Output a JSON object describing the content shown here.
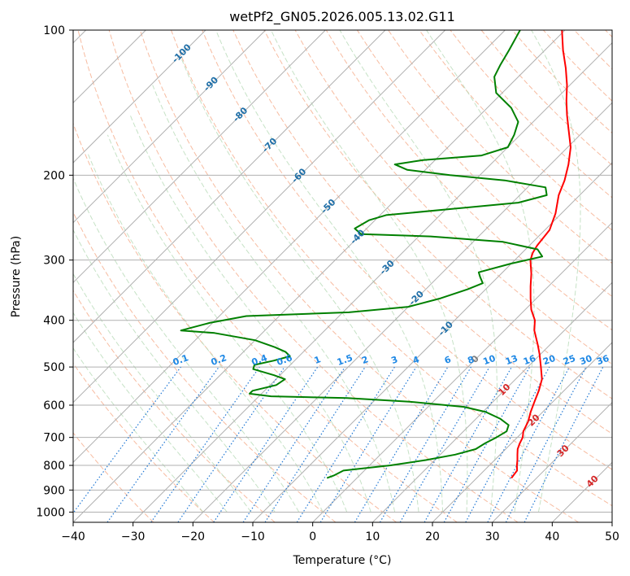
{
  "chart_data": {
    "type": "line",
    "title": "wetPf2_GN05.2026.005.13.02.G11",
    "xlabel": "Temperature (°C)",
    "ylabel": "Pressure (hPa)",
    "xlim": [
      -40,
      50
    ],
    "ylim": [
      1050,
      100
    ],
    "x_ticks": [
      -40,
      -30,
      -20,
      -10,
      0,
      10,
      20,
      30,
      40,
      50
    ],
    "y_ticks": [
      100,
      200,
      300,
      400,
      500,
      600,
      700,
      800,
      900,
      1000
    ],
    "grid": true,
    "colors": {
      "temperature": "#ff0000",
      "dewpoint": "#008000",
      "isotherm_grid": "#b0b0b0",
      "dry_adiabat": "#f4a582",
      "moist_adiabat": "#b8dbb8",
      "mixing_ratio": "#1f77d4",
      "mixing_label": "#1e88e5",
      "negative_label": "#1f6fa8",
      "positive_label": "#d62728",
      "zero_label": "#808080"
    },
    "series": [
      {
        "name": "Temperature",
        "points": [
          {
            "p": 850,
            "t": 25.8
          },
          {
            "p": 820,
            "t": 25.5
          },
          {
            "p": 800,
            "t": 24.6
          },
          {
            "p": 780,
            "t": 23.8
          },
          {
            "p": 760,
            "t": 22.9
          },
          {
            "p": 740,
            "t": 22.0
          },
          {
            "p": 720,
            "t": 21.4
          },
          {
            "p": 700,
            "t": 20.9
          },
          {
            "p": 680,
            "t": 20.0
          },
          {
            "p": 650,
            "t": 19.2
          },
          {
            "p": 620,
            "t": 18.0
          },
          {
            "p": 590,
            "t": 16.9
          },
          {
            "p": 560,
            "t": 15.8
          },
          {
            "p": 530,
            "t": 14.4
          },
          {
            "p": 500,
            "t": 12.2
          },
          {
            "p": 470,
            "t": 9.8
          },
          {
            "p": 450,
            "t": 8.0
          },
          {
            "p": 420,
            "t": 5.0
          },
          {
            "p": 400,
            "t": 3.4
          },
          {
            "p": 380,
            "t": 1.0
          },
          {
            "p": 360,
            "t": -1.0
          },
          {
            "p": 340,
            "t": -3.0
          },
          {
            "p": 320,
            "t": -5.0
          },
          {
            "p": 300,
            "t": -7.4
          },
          {
            "p": 290,
            "t": -8.2
          },
          {
            "p": 280,
            "t": -8.7
          },
          {
            "p": 260,
            "t": -9.2
          },
          {
            "p": 240,
            "t": -11.0
          },
          {
            "p": 220,
            "t": -13.5
          },
          {
            "p": 205,
            "t": -15.0
          },
          {
            "p": 190,
            "t": -17.0
          },
          {
            "p": 175,
            "t": -19.5
          },
          {
            "p": 160,
            "t": -23.0
          },
          {
            "p": 150,
            "t": -25.5
          },
          {
            "p": 140,
            "t": -28.0
          },
          {
            "p": 130,
            "t": -30.5
          },
          {
            "p": 120,
            "t": -33.5
          },
          {
            "p": 110,
            "t": -37.0
          },
          {
            "p": 100,
            "t": -40.5
          }
        ]
      },
      {
        "name": "Dewpoint",
        "points": [
          {
            "p": 850,
            "t": -5.0
          },
          {
            "p": 840,
            "t": -4.3
          },
          {
            "p": 820,
            "t": -3.5
          },
          {
            "p": 800,
            "t": 3.5
          },
          {
            "p": 780,
            "t": 8.5
          },
          {
            "p": 760,
            "t": 12.5
          },
          {
            "p": 740,
            "t": 15.0
          },
          {
            "p": 720,
            "t": 15.6
          },
          {
            "p": 700,
            "t": 16.5
          },
          {
            "p": 680,
            "t": 17.2
          },
          {
            "p": 660,
            "t": 16.5
          },
          {
            "p": 640,
            "t": 14.0
          },
          {
            "p": 620,
            "t": 10.5
          },
          {
            "p": 605,
            "t": 6.0
          },
          {
            "p": 590,
            "t": -4.0
          },
          {
            "p": 580,
            "t": -15.0
          },
          {
            "p": 575,
            "t": -28.0
          },
          {
            "p": 568,
            "t": -32.0
          },
          {
            "p": 560,
            "t": -32.0
          },
          {
            "p": 545,
            "t": -29.0
          },
          {
            "p": 530,
            "t": -28.5
          },
          {
            "p": 520,
            "t": -31.0
          },
          {
            "p": 505,
            "t": -35.5
          },
          {
            "p": 495,
            "t": -36.0
          },
          {
            "p": 485,
            "t": -33.5
          },
          {
            "p": 475,
            "t": -31.5
          },
          {
            "p": 465,
            "t": -33.0
          },
          {
            "p": 455,
            "t": -35.5
          },
          {
            "p": 440,
            "t": -40.0
          },
          {
            "p": 425,
            "t": -48.0
          },
          {
            "p": 420,
            "t": -54.0
          },
          {
            "p": 405,
            "t": -50.5
          },
          {
            "p": 392,
            "t": -45.5
          },
          {
            "p": 385,
            "t": -29.0
          },
          {
            "p": 375,
            "t": -20.0
          },
          {
            "p": 360,
            "t": -16.0
          },
          {
            "p": 345,
            "t": -13.0
          },
          {
            "p": 335,
            "t": -11.5
          },
          {
            "p": 325,
            "t": -13.0
          },
          {
            "p": 318,
            "t": -14.0
          },
          {
            "p": 305,
            "t": -10.0
          },
          {
            "p": 295,
            "t": -6.0
          },
          {
            "p": 285,
            "t": -8.0
          },
          {
            "p": 275,
            "t": -15.0
          },
          {
            "p": 268,
            "t": -28.0
          },
          {
            "p": 265,
            "t": -40.0
          },
          {
            "p": 258,
            "t": -42.0
          },
          {
            "p": 248,
            "t": -41.0
          },
          {
            "p": 242,
            "t": -39.0
          },
          {
            "p": 235,
            "t": -29.0
          },
          {
            "p": 228,
            "t": -19.0
          },
          {
            "p": 220,
            "t": -15.5
          },
          {
            "p": 212,
            "t": -17.0
          },
          {
            "p": 205,
            "t": -25.0
          },
          {
            "p": 200,
            "t": -35.0
          },
          {
            "p": 195,
            "t": -43.0
          },
          {
            "p": 190,
            "t": -46.0
          },
          {
            "p": 186,
            "t": -42.0
          },
          {
            "p": 182,
            "t": -33.0
          },
          {
            "p": 175,
            "t": -30.0
          },
          {
            "p": 165,
            "t": -31.0
          },
          {
            "p": 155,
            "t": -32.5
          },
          {
            "p": 145,
            "t": -36.0
          },
          {
            "p": 135,
            "t": -41.0
          },
          {
            "p": 125,
            "t": -44.0
          },
          {
            "p": 118,
            "t": -45.0
          },
          {
            "p": 110,
            "t": -46.0
          },
          {
            "p": 100,
            "t": -47.5
          }
        ]
      }
    ],
    "isotherm_labels": {
      "values": [
        -100,
        -90,
        -80,
        -70,
        -60,
        -50,
        -40,
        -30,
        -20,
        -10,
        0,
        10,
        20,
        30,
        40
      ],
      "text": [
        "-100",
        "-90",
        "-80",
        "-70",
        "-60",
        "-50",
        "-40",
        "-30",
        "-20",
        "-10",
        "0",
        "10",
        "20",
        "30",
        "40"
      ]
    },
    "mixing_ratio_labels": {
      "values": [
        0.1,
        0.2,
        0.4,
        0.6,
        1,
        1.5,
        2,
        3,
        4,
        6,
        8,
        10,
        13,
        16,
        20,
        25,
        30,
        36
      ],
      "text": [
        "0.1",
        "0.2",
        "0.4",
        "0.6",
        "1",
        "1.5",
        "2",
        "3",
        "4",
        "6",
        "8",
        "10",
        "13",
        "16",
        "20",
        "25",
        "30",
        "36"
      ]
    }
  }
}
